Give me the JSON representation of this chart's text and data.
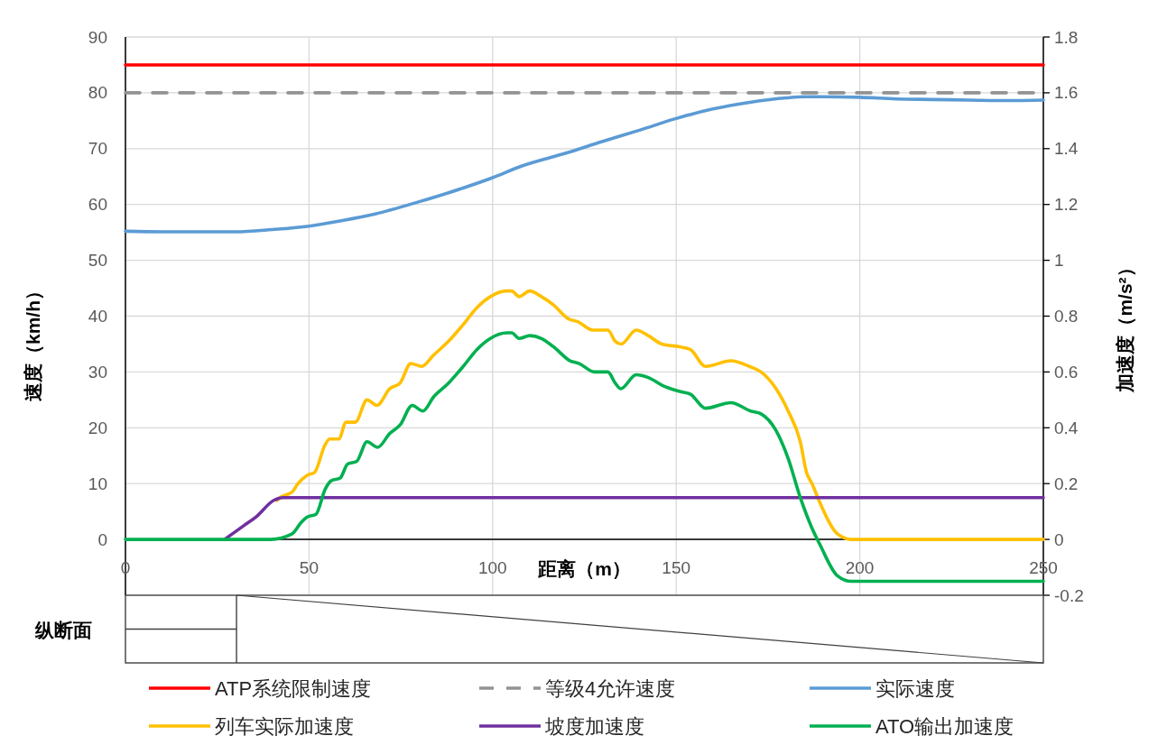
{
  "chart_data": {
    "type": "line",
    "xlabel": "距离（m）",
    "ylabel": "速度（km/h）",
    "y2label": "加速度（m/s²）",
    "annotations": [
      "纵断面"
    ],
    "xlim": [
      0,
      250
    ],
    "xticks": [
      0,
      50,
      100,
      150,
      200,
      250
    ],
    "ylim": [
      -10,
      90
    ],
    "yticks": [
      0,
      10,
      20,
      30,
      40,
      50,
      60,
      70,
      80,
      90
    ],
    "y2lim": [
      -0.2,
      1.8
    ],
    "y2ticks": [
      -0.2,
      0,
      0.2,
      0.4,
      0.6,
      0.8,
      1,
      1.2,
      1.4,
      1.6,
      1.8
    ],
    "grid": true,
    "legend": "bottom",
    "series": [
      {
        "name": "ATP系统限制速度",
        "color": "#ff0000",
        "x": [
          0,
          250
        ],
        "values": [
          85,
          85
        ]
      },
      {
        "name": "等级4允许速度",
        "color": "#939393",
        "line_style": "dashed",
        "x": [
          0,
          250
        ],
        "values": [
          80,
          80
        ]
      },
      {
        "name": "实际速度",
        "color": "#5b9bd5",
        "x": [
          0,
          10,
          20,
          30,
          40,
          50,
          58,
          68,
          80,
          88,
          100,
          108,
          120,
          130,
          140,
          150,
          160,
          170,
          180,
          185,
          190,
          200,
          210,
          220,
          230,
          240,
          250
        ],
        "values": [
          55.2,
          55.1,
          55.1,
          55.1,
          55.5,
          56.1,
          57.0,
          58.3,
          60.5,
          62.1,
          64.8,
          66.9,
          69.2,
          71.3,
          73.3,
          75.4,
          77.1,
          78.3,
          79.1,
          79.3,
          79.3,
          79.2,
          78.9,
          78.8,
          78.7,
          78.6,
          78.7
        ]
      },
      {
        "name": "列车实际加速度",
        "color": "#ffc000",
        "axis": "y2",
        "x": [
          41.3,
          42.1,
          45.4,
          47,
          49.5,
          51.5,
          54.4,
          55.6,
          58.1,
          60.1,
          62.6,
          65.8,
          68.5,
          72,
          74.8,
          77.7,
          80.7,
          83.9,
          88,
          92,
          95.7,
          99.4,
          103.9,
          105.2,
          107.2,
          110.1,
          113.3,
          116.6,
          120.7,
          123.2,
          127.3,
          131.4,
          133.4,
          135,
          139.1,
          142.4,
          146.1,
          151,
          153.9,
          158,
          164.9,
          169.9,
          173.1,
          177.2,
          180.5,
          183.8,
          185.5,
          187,
          189.2,
          193.9,
          197.7,
          250
        ],
        "values": [
          0.14,
          0.15,
          0.17,
          0.2,
          0.23,
          0.24,
          0.34,
          0.36,
          0.36,
          0.42,
          0.42,
          0.5,
          0.48,
          0.54,
          0.56,
          0.63,
          0.62,
          0.66,
          0.71,
          0.77,
          0.83,
          0.87,
          0.89,
          0.89,
          0.87,
          0.89,
          0.87,
          0.84,
          0.79,
          0.78,
          0.75,
          0.75,
          0.71,
          0.7,
          0.75,
          0.73,
          0.7,
          0.69,
          0.68,
          0.62,
          0.64,
          0.62,
          0.6,
          0.54,
          0.46,
          0.35,
          0.24,
          0.2,
          0.13,
          0.02,
          0,
          0
        ]
      },
      {
        "name": "坡度加速度",
        "color": "#7030a0",
        "axis": "y2",
        "x": [
          27,
          32.3,
          35.5,
          40.4,
          42.9,
          250
        ],
        "values": [
          0,
          0.05,
          0.08,
          0.14,
          0.15,
          0.15
        ]
      },
      {
        "name": "ATO输出加速度",
        "color": "#00b050",
        "axis": "y2",
        "x": [
          0,
          39.6,
          45.4,
          47.8,
          49.5,
          51.9,
          54.4,
          56,
          58.5,
          60.5,
          63,
          65.8,
          68.7,
          72,
          74.8,
          78.1,
          81,
          83.9,
          88,
          92,
          95.7,
          99.4,
          103.9,
          105.2,
          107.2,
          110.1,
          113.3,
          116.6,
          121.1,
          123.6,
          127.7,
          131.4,
          133.4,
          134.9,
          139.1,
          142.4,
          146.5,
          151,
          153.9,
          158,
          164.9,
          170.3,
          173.1,
          177.2,
          180.5,
          183.8,
          187,
          189.2,
          193.9,
          197.7,
          250
        ],
        "values": [
          0,
          0,
          0.02,
          0.06,
          0.08,
          0.09,
          0.18,
          0.21,
          0.22,
          0.27,
          0.28,
          0.35,
          0.33,
          0.38,
          0.41,
          0.48,
          0.46,
          0.51,
          0.56,
          0.62,
          0.68,
          0.72,
          0.74,
          0.74,
          0.72,
          0.73,
          0.72,
          0.69,
          0.64,
          0.63,
          0.6,
          0.6,
          0.56,
          0.54,
          0.59,
          0.58,
          0.55,
          0.53,
          0.52,
          0.47,
          0.49,
          0.46,
          0.45,
          0.39,
          0.29,
          0.15,
          0.04,
          -0.02,
          -0.13,
          -0.15,
          -0.15
        ]
      }
    ]
  }
}
